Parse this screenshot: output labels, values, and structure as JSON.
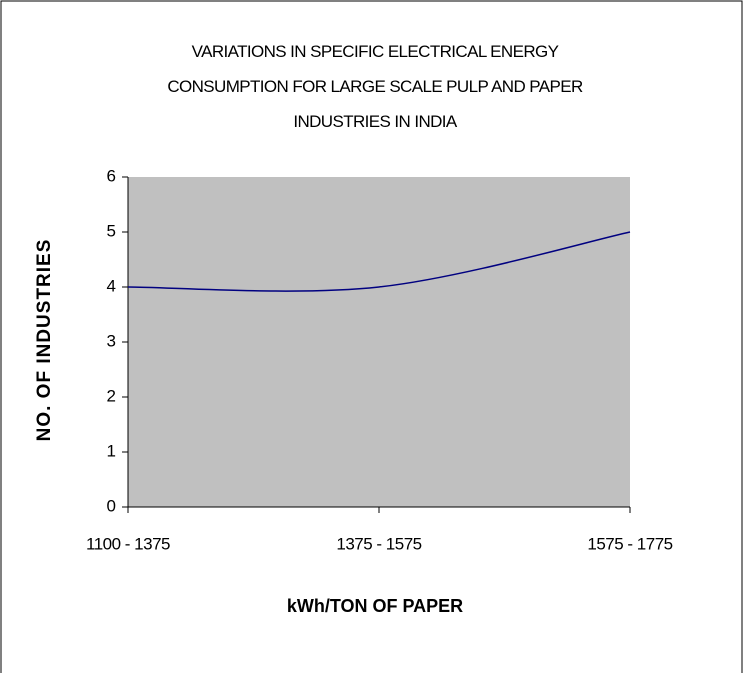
{
  "chart_data": {
    "type": "line",
    "title": "VARIATIONS IN SPECIFIC ELECTRICAL ENERGY CONSUMPTION FOR LARGE SCALE PULP AND PAPER INDUSTRIES IN INDIA",
    "x_label": "kWh/TON OF PAPER",
    "y_label": "NO. OF INDUSTRIES",
    "categories": [
      "1100 - 1375",
      "1375 - 1575",
      "1575 - 1775"
    ],
    "values": [
      4,
      4,
      5
    ],
    "color": "#000080",
    "plot_background": "#c0c0c0",
    "smooth": true,
    "ylim": [
      0,
      6
    ],
    "yticks": [
      0,
      1,
      2,
      3,
      4,
      5,
      6
    ]
  }
}
